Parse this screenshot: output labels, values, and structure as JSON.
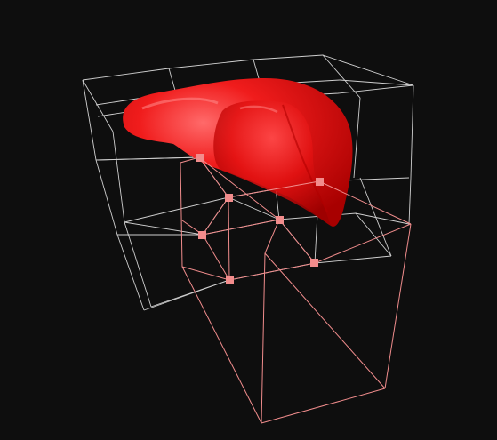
{
  "viewport": {
    "background": "#0e0e0e",
    "lattice_color": "#d8d8d8",
    "selection_color": "#f08c8c",
    "mesh_color": "#e01010",
    "mesh_highlight": "#ff5a5a",
    "handle_color": "#f28c8c"
  },
  "scene": {
    "object": "organ-mesh",
    "lattice_handles_selected": 8
  }
}
